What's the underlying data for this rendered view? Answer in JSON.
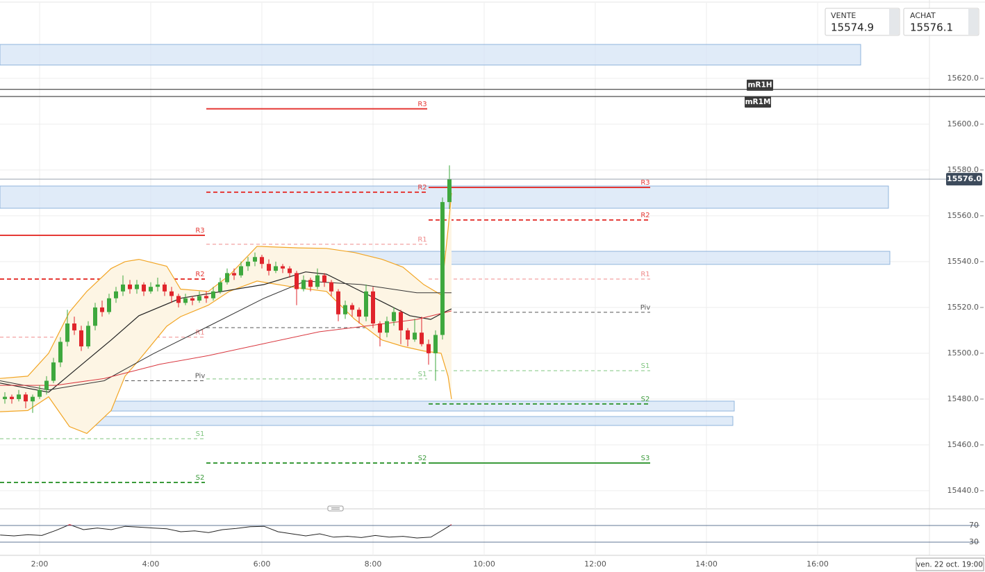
{
  "chart_data": {
    "type": "candlestick",
    "xlim": [
      1.2875,
      18.0125
    ],
    "xticks": [
      {
        "value": 2,
        "label": "2:00"
      },
      {
        "value": 4,
        "label": "4:00"
      },
      {
        "value": 6,
        "label": "6:00"
      },
      {
        "value": 8,
        "label": "8:00"
      },
      {
        "value": 10,
        "label": "10:00"
      },
      {
        "value": 12,
        "label": "12:00"
      },
      {
        "value": 14,
        "label": "14:00"
      },
      {
        "value": 16,
        "label": "16:00"
      }
    ],
    "ylim": [
      15432.1,
      15654.2
    ],
    "yticks": [
      {
        "value": 15620,
        "label": "15620.0"
      },
      {
        "value": 15600,
        "label": "15600.0"
      },
      {
        "value": 15580,
        "label": "15580.0"
      },
      {
        "value": 15560,
        "label": "15560.0"
      },
      {
        "value": 15540,
        "label": "15540.0"
      },
      {
        "value": 15520,
        "label": "15520.0"
      },
      {
        "value": 15500,
        "label": "15500.0"
      },
      {
        "value": 15480,
        "label": "15480.0"
      },
      {
        "value": 15460,
        "label": "15460.0"
      },
      {
        "value": 15440,
        "label": "15440.0"
      }
    ],
    "grid": true,
    "up_color": "#3ea83e",
    "down_color": "#e0242b",
    "x": [
      1.375,
      1.5,
      1.625,
      1.75,
      1.875,
      2.0,
      2.125,
      2.25,
      2.375,
      2.5,
      2.625,
      2.75,
      2.875,
      3.0,
      3.125,
      3.25,
      3.375,
      3.5,
      3.625,
      3.75,
      3.875,
      4.0,
      4.125,
      4.25,
      4.375,
      4.5,
      4.625,
      4.75,
      4.875,
      5.0,
      5.125,
      5.25,
      5.375,
      5.5,
      5.625,
      5.75,
      5.875,
      6.0,
      6.125,
      6.25,
      6.375,
      6.5,
      6.625,
      6.75,
      6.875,
      7.0,
      7.125,
      7.25,
      7.375,
      7.5,
      7.625,
      7.75,
      7.875,
      8.0,
      8.125,
      8.25,
      8.375,
      8.5,
      8.625,
      8.75,
      8.875,
      9.0,
      9.125,
      9.25,
      9.375
    ],
    "ohlc": [
      [
        15480,
        15483,
        15478,
        15481
      ],
      [
        15481,
        15482,
        15478,
        15480
      ],
      [
        15480,
        15484,
        15479,
        15482
      ],
      [
        15482,
        15483,
        15476,
        15479
      ],
      [
        15479,
        15482,
        15474,
        15481
      ],
      [
        15481,
        15486,
        15480,
        15484
      ],
      [
        15484,
        15490,
        15482,
        15488
      ],
      [
        15488,
        15498,
        15487,
        15496
      ],
      [
        15496,
        15507,
        15494,
        15505
      ],
      [
        15505,
        15519,
        15503,
        15513
      ],
      [
        15513,
        15516,
        15508,
        15510
      ],
      [
        15510,
        15512,
        15501,
        15503
      ],
      [
        15503,
        15514,
        15502,
        15512
      ],
      [
        15512,
        15522,
        15510,
        15520
      ],
      [
        15520,
        15523,
        15516,
        15518
      ],
      [
        15518,
        15526,
        15517,
        15524
      ],
      [
        15524,
        15529,
        15522,
        15527
      ],
      [
        15527,
        15534,
        15525,
        15530
      ],
      [
        15530,
        15532,
        15526,
        15528
      ],
      [
        15528,
        15532,
        15526,
        15530
      ],
      [
        15530,
        15531,
        15525,
        15527
      ],
      [
        15527,
        15531,
        15526,
        15529
      ],
      [
        15529,
        15533,
        15527,
        15530
      ],
      [
        15530,
        15531,
        15525,
        15527
      ],
      [
        15527,
        15529,
        15522,
        15525
      ],
      [
        15525,
        15526,
        15520,
        15522
      ],
      [
        15522,
        15526,
        15521,
        15524
      ],
      [
        15524,
        15525,
        15521,
        15523
      ],
      [
        15523,
        15527,
        15522,
        15525
      ],
      [
        15525,
        15527,
        15522,
        15524
      ],
      [
        15524,
        15529,
        15523,
        15527
      ],
      [
        15527,
        15533,
        15526,
        15531
      ],
      [
        15531,
        15537,
        15530,
        15535
      ],
      [
        15535,
        15537,
        15532,
        15534
      ],
      [
        15534,
        15540,
        15533,
        15538
      ],
      [
        15538,
        15542,
        15536,
        15540
      ],
      [
        15540,
        15544,
        15538,
        15542
      ],
      [
        15542,
        15543,
        15537,
        15539
      ],
      [
        15539,
        15541,
        15534,
        15536
      ],
      [
        15536,
        15540,
        15535,
        15538
      ],
      [
        15538,
        15539,
        15535,
        15537
      ],
      [
        15537,
        15538,
        15533,
        15535
      ],
      [
        15535,
        15536,
        15521,
        15528
      ],
      [
        15528,
        15534,
        15527,
        15532
      ],
      [
        15532,
        15533,
        15527,
        15529
      ],
      [
        15529,
        15537,
        15528,
        15534
      ],
      [
        15534,
        15535,
        15529,
        15531
      ],
      [
        15531,
        15532,
        15525,
        15527
      ],
      [
        15527,
        15528,
        15514,
        15517
      ],
      [
        15517,
        15523,
        15515,
        15521
      ],
      [
        15521,
        15522,
        15516,
        15519
      ],
      [
        15519,
        15520,
        15513,
        15516
      ],
      [
        15516,
        15530,
        15514,
        15527
      ],
      [
        15527,
        15529,
        15511,
        15513
      ],
      [
        15513,
        15514,
        15503,
        15509
      ],
      [
        15509,
        15516,
        15507,
        15514
      ],
      [
        15514,
        15520,
        15512,
        15518
      ],
      [
        15518,
        15519,
        15504,
        15510
      ],
      [
        15510,
        15511,
        15503,
        15506
      ],
      [
        15506,
        15515,
        15505,
        15509
      ],
      [
        15509,
        15516,
        15503,
        15504
      ],
      [
        15504,
        15506,
        15495,
        15500
      ],
      [
        15500,
        15510,
        15488,
        15508
      ],
      [
        15508,
        15568,
        15506,
        15566
      ],
      [
        15566,
        15582,
        15563,
        15576
      ]
    ],
    "band": {
      "color": "#f2a524",
      "fill": "#fdf5e4",
      "x": [
        1.2875,
        1.7875,
        2.1625,
        2.5375,
        2.85,
        3.2875,
        3.5375,
        3.7875,
        4.2875,
        4.5375,
        5.0375,
        5.4125,
        5.9125,
        6.6625,
        7.1625,
        7.6625,
        8.1625,
        8.5375,
        8.9125,
        9.225,
        9.35,
        9.4125
      ],
      "upper": [
        15489,
        15490,
        15500,
        15518,
        15527,
        15537,
        15540,
        15541,
        15538,
        15528,
        15527,
        15534,
        15546.7,
        15546,
        15545.8,
        15544,
        15541,
        15537.6,
        15530,
        15525.5,
        15554,
        15570
      ],
      "lower": [
        15474.5,
        15475,
        15481,
        15468,
        15465,
        15475,
        15490,
        15497,
        15511.8,
        15516,
        15521,
        15527,
        15531.5,
        15528.5,
        15527,
        15515,
        15505.8,
        15503,
        15501,
        15500,
        15490,
        15480
      ]
    },
    "lines": [
      {
        "color": "#222222",
        "width": 1.2,
        "x": [
          1.2875,
          2.1625,
          2.5375,
          3.2875,
          3.7875,
          4.5375,
          5.2875,
          6.0375,
          6.7875,
          7.1625,
          7.5375,
          8.0375,
          8.6625,
          9.0375,
          9.2875,
          9.4125
        ],
        "values": [
          15487,
          15483,
          15490.6,
          15505.8,
          15516.4,
          15524,
          15527,
          15530,
          15535.5,
          15534.5,
          15530,
          15524,
          15516.4,
          15514.8,
          15518,
          15519.4
        ]
      },
      {
        "color": "#333333",
        "width": 1,
        "x": [
          1.2875,
          2.1625,
          3.1625,
          4.0375,
          5.0375,
          6.0375,
          6.7875,
          7.7875,
          8.7875,
          9.4125
        ],
        "values": [
          15488,
          15484,
          15488,
          15499.7,
          15511.8,
          15524,
          15531.5,
          15530,
          15526.4,
          15526.4
        ]
      },
      {
        "color": "#d9363e",
        "width": 1,
        "x": [
          1.2875,
          2.2875,
          3.1625,
          4.1625,
          5.0375,
          6.0375,
          7.0375,
          8.0375,
          8.7875,
          9.4125
        ],
        "values": [
          15486,
          15486,
          15489,
          15495.2,
          15499,
          15504.2,
          15509.4,
          15512.4,
          15514.8,
          15518.5
        ]
      }
    ],
    "pivots": [
      {
        "start": 1.2875,
        "end": 4.975,
        "levels": [
          {
            "label": "R3",
            "value": 15551.5,
            "color": "#e53935",
            "width": 2,
            "dashed": false
          },
          {
            "label": "R2",
            "value": 15532.4,
            "color": "#e53935",
            "width": 2,
            "dashed": true
          },
          {
            "label": "R1",
            "value": 15507,
            "color": "#ef8a8a",
            "width": 1,
            "dashed": true
          },
          {
            "label": "Piv",
            "value": 15488,
            "color": "#555555",
            "width": 1,
            "dashed": true
          },
          {
            "label": "S1",
            "value": 15462.7,
            "color": "#7fc47f",
            "width": 1,
            "dashed": true
          },
          {
            "label": "S2",
            "value": 15443.6,
            "color": "#3a9a3a",
            "width": 2,
            "dashed": true
          }
        ]
      },
      {
        "start": 5.0,
        "end": 8.975,
        "levels": [
          {
            "label": "R3",
            "value": 15606.7,
            "color": "#e53935",
            "width": 2,
            "dashed": false
          },
          {
            "label": "R2",
            "value": 15570.3,
            "color": "#e53935",
            "width": 2,
            "dashed": true
          },
          {
            "label": "R1",
            "value": 15547.6,
            "color": "#ef8a8a",
            "width": 1,
            "dashed": true
          },
          {
            "label": "Piv",
            "value": 15511.2,
            "color": "#555555",
            "width": 1,
            "dashed": true
          },
          {
            "label": "S1",
            "value": 15488.8,
            "color": "#7fc47f",
            "width": 1,
            "dashed": true
          },
          {
            "label": "S2",
            "value": 15452.1,
            "color": "#3a9a3a",
            "width": 2,
            "dashed": true
          }
        ]
      },
      {
        "start": 9.0,
        "end": 12.9875,
        "levels": [
          {
            "label": "R3",
            "value": 15572.4,
            "color": "#e53935",
            "width": 2,
            "dashed": false
          },
          {
            "label": "R2",
            "value": 15558.2,
            "color": "#e53935",
            "width": 2,
            "dashed": true
          },
          {
            "label": "R1",
            "value": 15532.4,
            "color": "#ef8a8a",
            "width": 1,
            "dashed": true
          },
          {
            "label": "Piv",
            "value": 15517.9,
            "color": "#555555",
            "width": 1,
            "dashed": true
          },
          {
            "label": "S1",
            "value": 15492.4,
            "color": "#7fc47f",
            "width": 1,
            "dashed": true
          },
          {
            "label": "S2",
            "value": 15477.9,
            "color": "#3a9a3a",
            "width": 2,
            "dashed": true
          },
          {
            "label": "S3",
            "value": 15452.1,
            "color": "#3a9a3a",
            "width": 2,
            "dashed": false
          }
        ]
      }
    ],
    "zones": [
      {
        "start": 1.2875,
        "end": 16.775,
        "top": 15634.8,
        "bottom": 15625.8
      },
      {
        "start": 1.2875,
        "end": 17.275,
        "top": 15573.0,
        "bottom": 15563.3
      },
      {
        "start": 7.1875,
        "end": 17.3,
        "top": 15544.5,
        "bottom": 15538.8
      },
      {
        "start": 2.9,
        "end": 14.5,
        "top": 15479.1,
        "bottom": 15474.8
      },
      {
        "start": 2.55,
        "end": 14.475,
        "top": 15472.4,
        "bottom": 15468.5
      }
    ],
    "markers": [
      {
        "label": "mR1H",
        "value": 15615.2
      },
      {
        "label": "mR1M",
        "value": 15612.1
      }
    ],
    "last_price": {
      "value": 15576,
      "label": "15576.0"
    },
    "rsi": {
      "ylim": [
        0,
        100
      ],
      "yticks": [
        70,
        30
      ],
      "color": "#222222",
      "over_color": "#e0242b",
      "x": [
        1.29,
        1.54,
        1.79,
        2.04,
        2.29,
        2.54,
        2.79,
        3.04,
        3.29,
        3.54,
        3.79,
        4.04,
        4.29,
        4.54,
        4.79,
        5.04,
        5.29,
        5.54,
        5.79,
        6.04,
        6.29,
        6.54,
        6.79,
        7.04,
        7.29,
        7.54,
        7.79,
        8.04,
        8.29,
        8.54,
        8.79,
        9.04,
        9.29,
        9.41
      ],
      "values": [
        47,
        45,
        48,
        46,
        58,
        72,
        60,
        64,
        60,
        68,
        66,
        64,
        62,
        55,
        57,
        53,
        60,
        63,
        67,
        68,
        55,
        50,
        45,
        50,
        42,
        44,
        41,
        46,
        42,
        44,
        40,
        42,
        62,
        72
      ]
    },
    "date_label": "ven. 22 oct. 19:00",
    "quotes": [
      {
        "label": "VENTE",
        "value": 15574.9
      },
      {
        "label": "ACHAT",
        "value": 15576.1
      }
    ]
  }
}
